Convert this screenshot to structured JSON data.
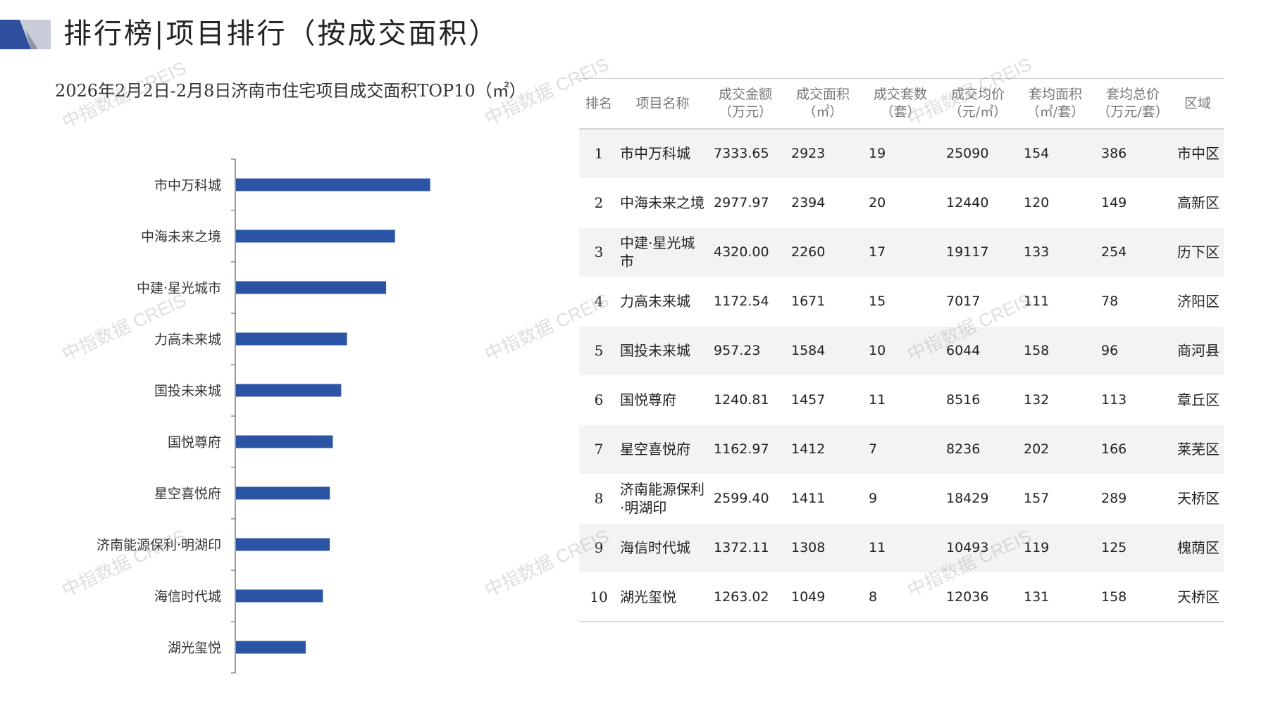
{
  "header": {
    "title": "排行榜|项目排行（按成交面积）"
  },
  "chart": {
    "title": "2026年2月2日-2月8日济南市住宅项目成交面积TOP10（㎡）"
  },
  "colors": {
    "bar": "#2b55a4",
    "logo_dark": "#2f4f9f",
    "logo_light": "#c8ccd6"
  },
  "chart_data": {
    "type": "bar",
    "orientation": "horizontal",
    "title": "2026年2月2日-2月8日济南市住宅项目成交面积TOP10（㎡）",
    "categories": [
      "市中万科城",
      "中海未来之境",
      "中建·星光城市",
      "力高未来城",
      "国投未来城",
      "国悦尊府",
      "星空喜悦府",
      "济南能源保利·明湖印",
      "海信时代城",
      "湖光玺悦"
    ],
    "values": [
      2923,
      2394,
      2260,
      1671,
      1584,
      1457,
      1412,
      1411,
      1308,
      1049
    ],
    "xlim": [
      0,
      4200
    ],
    "grid": false,
    "legend": "none"
  },
  "table": {
    "headers": [
      [
        "排名",
        ""
      ],
      [
        "项目名称",
        ""
      ],
      [
        "成交金额",
        "（万元）"
      ],
      [
        "成交面积",
        "（㎡）"
      ],
      [
        "成交套数",
        "（套）"
      ],
      [
        "成交均价",
        "（元/㎡）"
      ],
      [
        "套均面积",
        "（㎡/套）"
      ],
      [
        "套均总价",
        "（万元/套）"
      ],
      [
        "区域",
        ""
      ]
    ],
    "rows": [
      [
        "1",
        "市中万科城",
        "7333.65",
        "2923",
        "19",
        "25090",
        "154",
        "386",
        "市中区"
      ],
      [
        "2",
        "中海未来之境",
        "2977.97",
        "2394",
        "20",
        "12440",
        "120",
        "149",
        "高新区"
      ],
      [
        "3",
        "中建·星光城市",
        "4320.00",
        "2260",
        "17",
        "19117",
        "133",
        "254",
        "历下区"
      ],
      [
        "4",
        "力高未来城",
        "1172.54",
        "1671",
        "15",
        "7017",
        "111",
        "78",
        "济阳区"
      ],
      [
        "5",
        "国投未来城",
        "957.23",
        "1584",
        "10",
        "6044",
        "158",
        "96",
        "商河县"
      ],
      [
        "6",
        "国悦尊府",
        "1240.81",
        "1457",
        "11",
        "8516",
        "132",
        "113",
        "章丘区"
      ],
      [
        "7",
        "星空喜悦府",
        "1162.97",
        "1412",
        "7",
        "8236",
        "202",
        "166",
        "莱芜区"
      ],
      [
        "8",
        "济南能源保利·明湖印",
        "2599.40",
        "1411",
        "9",
        "18429",
        "157",
        "289",
        "天桥区"
      ],
      [
        "9",
        "海信时代城",
        "1372.11",
        "1308",
        "11",
        "10493",
        "119",
        "125",
        "槐荫区"
      ],
      [
        "10",
        "湖光玺悦",
        "1263.02",
        "1049",
        "8",
        "12036",
        "131",
        "158",
        "天桥区"
      ]
    ]
  },
  "watermark": {
    "text": "中指数据 CREIS"
  }
}
